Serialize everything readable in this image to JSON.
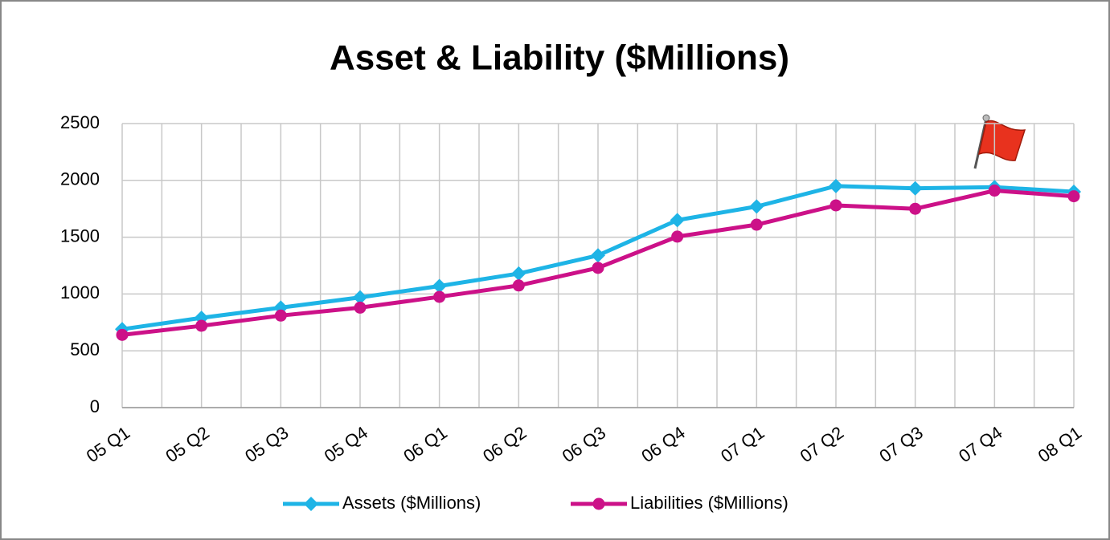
{
  "chart_data": {
    "type": "line",
    "title": "Asset & Liability ($Millions)",
    "categories": [
      "05 Q1",
      "05 Q2",
      "05 Q3",
      "05 Q4",
      "06 Q1",
      "06 Q2",
      "06 Q3",
      "06 Q4",
      "07 Q1",
      "07 Q2",
      "07 Q3",
      "07 Q4",
      "08 Q1"
    ],
    "series": [
      {
        "name": "Assets ($Millions)",
        "color": "#1eb4e6",
        "marker": "diamond",
        "values": [
          690,
          790,
          880,
          970,
          1070,
          1180,
          1340,
          1650,
          1770,
          1950,
          1930,
          1940,
          1900
        ]
      },
      {
        "name": "Liabilities ($Millions)",
        "color": "#cc1188",
        "marker": "circle",
        "values": [
          640,
          720,
          810,
          880,
          975,
          1075,
          1230,
          1505,
          1610,
          1780,
          1750,
          1910,
          1860
        ]
      }
    ],
    "ylim": [
      0,
      2500
    ],
    "yticks": [
      0,
      500,
      1000,
      1500,
      2000,
      2500
    ],
    "grid": true,
    "legend": "bottom"
  }
}
